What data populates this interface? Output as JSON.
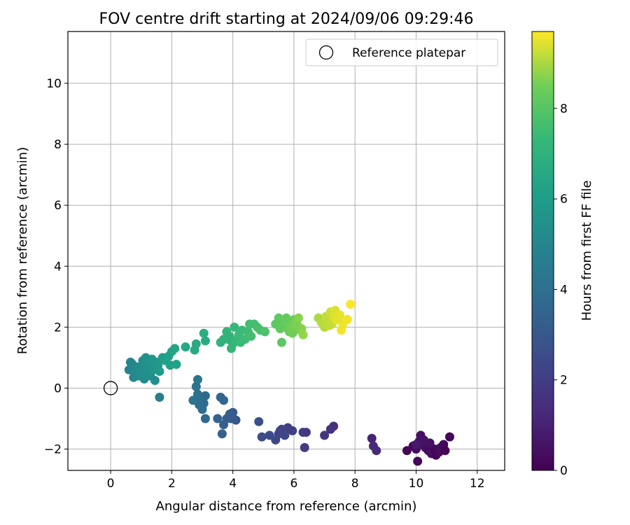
{
  "chart_data": {
    "type": "scatter",
    "title": "FOV centre drift starting at 2024/09/06 09:29:46",
    "xlabel": "Angular distance from reference (arcmin)",
    "ylabel": "Rotation from reference (arcmin)",
    "xlim": [
      -1.4,
      12.9
    ],
    "ylim": [
      -2.7,
      11.7
    ],
    "x_ticks": [
      0,
      2,
      4,
      6,
      8,
      10,
      12
    ],
    "y_ticks": [
      -2,
      0,
      2,
      4,
      6,
      8,
      10
    ],
    "grid": true,
    "legend": {
      "position": "top-right",
      "entries": [
        "Reference platepar"
      ]
    },
    "reference_point": {
      "label": "Reference platepar",
      "x": 0,
      "y": 0,
      "marker": "open-circle"
    },
    "colorbar": {
      "label": "Hours from first FF file",
      "min": 0,
      "max": 9.7,
      "ticks": [
        0,
        2,
        4,
        6,
        8
      ],
      "colormap": "viridis"
    },
    "series": [
      {
        "color_by": "hours",
        "points": [
          {
            "x": 9.7,
            "y": -2.05,
            "h": 0.1
          },
          {
            "x": 9.9,
            "y": -1.9,
            "h": 0.2
          },
          {
            "x": 10.0,
            "y": -2.0,
            "h": 0.3
          },
          {
            "x": 10.05,
            "y": -2.4,
            "h": 0.2
          },
          {
            "x": 10.1,
            "y": -1.75,
            "h": 0.4
          },
          {
            "x": 10.15,
            "y": -1.55,
            "h": 0.5
          },
          {
            "x": 10.2,
            "y": -1.85,
            "h": 0.6
          },
          {
            "x": 10.3,
            "y": -1.95,
            "h": 0.4
          },
          {
            "x": 10.4,
            "y": -2.05,
            "h": 0.3
          },
          {
            "x": 10.5,
            "y": -2.15,
            "h": 0.5
          },
          {
            "x": 10.6,
            "y": -2.0,
            "h": 0.2
          },
          {
            "x": 10.65,
            "y": -2.2,
            "h": 0.1
          },
          {
            "x": 10.75,
            "y": -2.1,
            "h": 0.3
          },
          {
            "x": 10.8,
            "y": -1.95,
            "h": 0.4
          },
          {
            "x": 10.9,
            "y": -1.85,
            "h": 0.2
          },
          {
            "x": 10.95,
            "y": -2.05,
            "h": 0.1
          },
          {
            "x": 11.1,
            "y": -1.6,
            "h": 0.2
          },
          {
            "x": 10.25,
            "y": -1.7,
            "h": 0.6
          },
          {
            "x": 10.45,
            "y": -1.8,
            "h": 0.5
          },
          {
            "x": 10.0,
            "y": -1.85,
            "h": 0.7
          },
          {
            "x": 8.55,
            "y": -1.65,
            "h": 1.1
          },
          {
            "x": 8.6,
            "y": -1.9,
            "h": 1.2
          },
          {
            "x": 8.7,
            "y": -2.05,
            "h": 1.3
          },
          {
            "x": 7.3,
            "y": -1.25,
            "h": 1.5
          },
          {
            "x": 7.2,
            "y": -1.35,
            "h": 1.6
          },
          {
            "x": 7.0,
            "y": -1.55,
            "h": 1.7
          },
          {
            "x": 6.4,
            "y": -1.45,
            "h": 1.8
          },
          {
            "x": 6.3,
            "y": -1.45,
            "h": 1.9
          },
          {
            "x": 6.35,
            "y": -1.95,
            "h": 2.0
          },
          {
            "x": 5.95,
            "y": -1.4,
            "h": 2.1
          },
          {
            "x": 5.8,
            "y": -1.3,
            "h": 2.1
          },
          {
            "x": 5.6,
            "y": -1.35,
            "h": 2.2
          },
          {
            "x": 5.5,
            "y": -1.5,
            "h": 2.3
          },
          {
            "x": 5.4,
            "y": -1.7,
            "h": 2.4
          },
          {
            "x": 5.2,
            "y": -1.55,
            "h": 2.5
          },
          {
            "x": 4.95,
            "y": -1.6,
            "h": 2.6
          },
          {
            "x": 4.85,
            "y": -1.1,
            "h": 2.7
          },
          {
            "x": 5.7,
            "y": -1.55,
            "h": 2.3
          },
          {
            "x": 5.55,
            "y": -1.4,
            "h": 2.2
          },
          {
            "x": 4.1,
            "y": -1.05,
            "h": 3.0
          },
          {
            "x": 4.0,
            "y": -0.8,
            "h": 3.1
          },
          {
            "x": 3.9,
            "y": -0.85,
            "h": 3.2
          },
          {
            "x": 3.8,
            "y": -1.0,
            "h": 3.3
          },
          {
            "x": 3.7,
            "y": -1.2,
            "h": 3.3
          },
          {
            "x": 3.65,
            "y": -1.5,
            "h": 3.4
          },
          {
            "x": 3.6,
            "y": -0.3,
            "h": 3.5
          },
          {
            "x": 3.7,
            "y": -0.4,
            "h": 3.6
          },
          {
            "x": 3.5,
            "y": -1.0,
            "h": 3.5
          },
          {
            "x": 3.95,
            "y": -1.0,
            "h": 3.2
          },
          {
            "x": 3.1,
            "y": -1.0,
            "h": 3.7
          },
          {
            "x": 3.05,
            "y": -0.5,
            "h": 3.8
          },
          {
            "x": 2.95,
            "y": -0.3,
            "h": 3.9
          },
          {
            "x": 2.85,
            "y": -0.2,
            "h": 4.0
          },
          {
            "x": 2.8,
            "y": 0.05,
            "h": 4.1
          },
          {
            "x": 2.85,
            "y": 0.28,
            "h": 4.2
          },
          {
            "x": 2.7,
            "y": -0.4,
            "h": 4.1
          },
          {
            "x": 3.0,
            "y": -0.7,
            "h": 3.9
          },
          {
            "x": 3.1,
            "y": -0.25,
            "h": 3.8
          },
          {
            "x": 2.9,
            "y": -0.55,
            "h": 3.9
          },
          {
            "x": 1.6,
            "y": -0.3,
            "h": 4.6
          },
          {
            "x": 0.6,
            "y": 0.6,
            "h": 5.0
          },
          {
            "x": 0.7,
            "y": 0.8,
            "h": 5.1
          },
          {
            "x": 0.8,
            "y": 0.5,
            "h": 5.2
          },
          {
            "x": 0.9,
            "y": 0.4,
            "h": 5.0
          },
          {
            "x": 1.0,
            "y": 0.65,
            "h": 5.3
          },
          {
            "x": 1.05,
            "y": 0.9,
            "h": 5.4
          },
          {
            "x": 1.1,
            "y": 0.3,
            "h": 5.2
          },
          {
            "x": 1.2,
            "y": 0.55,
            "h": 5.5
          },
          {
            "x": 1.25,
            "y": 0.75,
            "h": 5.6
          },
          {
            "x": 1.3,
            "y": 0.4,
            "h": 5.3
          },
          {
            "x": 1.4,
            "y": 0.6,
            "h": 5.7
          },
          {
            "x": 1.45,
            "y": 0.25,
            "h": 5.4
          },
          {
            "x": 1.5,
            "y": 0.85,
            "h": 5.8
          },
          {
            "x": 1.6,
            "y": 0.55,
            "h": 5.9
          },
          {
            "x": 0.75,
            "y": 0.35,
            "h": 5.1
          },
          {
            "x": 0.85,
            "y": 0.7,
            "h": 5.2
          },
          {
            "x": 0.95,
            "y": 0.55,
            "h": 5.3
          },
          {
            "x": 1.15,
            "y": 1.0,
            "h": 5.6
          },
          {
            "x": 1.35,
            "y": 0.95,
            "h": 5.7
          },
          {
            "x": 0.65,
            "y": 0.85,
            "h": 5.0
          },
          {
            "x": 1.0,
            "y": 0.45,
            "h": 5.4
          },
          {
            "x": 1.2,
            "y": 0.7,
            "h": 5.5
          },
          {
            "x": 1.55,
            "y": 0.75,
            "h": 5.8
          },
          {
            "x": 1.7,
            "y": 1.0,
            "h": 6.0
          },
          {
            "x": 1.8,
            "y": 0.9,
            "h": 6.1
          },
          {
            "x": 1.9,
            "y": 1.05,
            "h": 6.2
          },
          {
            "x": 2.0,
            "y": 1.2,
            "h": 6.3
          },
          {
            "x": 2.1,
            "y": 1.3,
            "h": 6.4
          },
          {
            "x": 2.15,
            "y": 0.78,
            "h": 6.3
          },
          {
            "x": 1.95,
            "y": 0.75,
            "h": 6.2
          },
          {
            "x": 2.45,
            "y": 1.35,
            "h": 6.5
          },
          {
            "x": 2.8,
            "y": 1.45,
            "h": 6.6
          },
          {
            "x": 2.75,
            "y": 1.25,
            "h": 6.6
          },
          {
            "x": 3.05,
            "y": 1.8,
            "h": 6.8
          },
          {
            "x": 3.1,
            "y": 1.55,
            "h": 6.7
          },
          {
            "x": 3.6,
            "y": 1.5,
            "h": 7.0
          },
          {
            "x": 3.7,
            "y": 1.6,
            "h": 7.0
          },
          {
            "x": 3.8,
            "y": 1.85,
            "h": 7.1
          },
          {
            "x": 3.9,
            "y": 1.7,
            "h": 7.1
          },
          {
            "x": 3.95,
            "y": 1.3,
            "h": 7.2
          },
          {
            "x": 4.0,
            "y": 1.45,
            "h": 7.2
          },
          {
            "x": 4.05,
            "y": 2.0,
            "h": 7.3
          },
          {
            "x": 4.1,
            "y": 1.55,
            "h": 7.3
          },
          {
            "x": 4.2,
            "y": 1.75,
            "h": 7.4
          },
          {
            "x": 4.3,
            "y": 1.9,
            "h": 7.4
          },
          {
            "x": 4.4,
            "y": 1.6,
            "h": 7.5
          },
          {
            "x": 4.5,
            "y": 1.85,
            "h": 7.5
          },
          {
            "x": 4.6,
            "y": 1.7,
            "h": 7.6
          },
          {
            "x": 4.7,
            "y": 2.1,
            "h": 7.6
          },
          {
            "x": 4.8,
            "y": 2.0,
            "h": 7.7
          },
          {
            "x": 4.9,
            "y": 1.9,
            "h": 7.7
          },
          {
            "x": 5.05,
            "y": 1.85,
            "h": 7.8
          },
          {
            "x": 4.25,
            "y": 1.5,
            "h": 7.4
          },
          {
            "x": 4.55,
            "y": 2.1,
            "h": 7.6
          },
          {
            "x": 3.85,
            "y": 1.6,
            "h": 7.1
          },
          {
            "x": 5.4,
            "y": 2.1,
            "h": 8.1
          },
          {
            "x": 5.5,
            "y": 2.3,
            "h": 8.2
          },
          {
            "x": 5.55,
            "y": 1.95,
            "h": 8.2
          },
          {
            "x": 5.6,
            "y": 1.5,
            "h": 8.1
          },
          {
            "x": 5.65,
            "y": 2.2,
            "h": 8.3
          },
          {
            "x": 5.7,
            "y": 2.0,
            "h": 8.3
          },
          {
            "x": 5.8,
            "y": 2.15,
            "h": 8.4
          },
          {
            "x": 5.85,
            "y": 1.85,
            "h": 8.4
          },
          {
            "x": 5.9,
            "y": 2.0,
            "h": 8.5
          },
          {
            "x": 6.0,
            "y": 2.25,
            "h": 8.5
          },
          {
            "x": 6.05,
            "y": 1.9,
            "h": 8.6
          },
          {
            "x": 6.1,
            "y": 2.1,
            "h": 8.6
          },
          {
            "x": 6.15,
            "y": 2.3,
            "h": 8.7
          },
          {
            "x": 6.25,
            "y": 1.95,
            "h": 8.7
          },
          {
            "x": 6.3,
            "y": 1.75,
            "h": 8.8
          },
          {
            "x": 5.75,
            "y": 2.3,
            "h": 8.3
          },
          {
            "x": 5.95,
            "y": 1.8,
            "h": 8.5
          },
          {
            "x": 6.05,
            "y": 2.05,
            "h": 8.6
          },
          {
            "x": 6.8,
            "y": 2.3,
            "h": 9.0
          },
          {
            "x": 6.9,
            "y": 2.15,
            "h": 9.1
          },
          {
            "x": 7.0,
            "y": 2.0,
            "h": 9.1
          },
          {
            "x": 7.05,
            "y": 2.35,
            "h": 9.2
          },
          {
            "x": 7.1,
            "y": 2.2,
            "h": 9.2
          },
          {
            "x": 7.2,
            "y": 2.5,
            "h": 9.3
          },
          {
            "x": 7.25,
            "y": 2.1,
            "h": 9.3
          },
          {
            "x": 7.3,
            "y": 2.35,
            "h": 9.4
          },
          {
            "x": 7.35,
            "y": 2.55,
            "h": 9.4
          },
          {
            "x": 7.4,
            "y": 2.25,
            "h": 9.5
          },
          {
            "x": 7.5,
            "y": 2.4,
            "h": 9.5
          },
          {
            "x": 7.55,
            "y": 1.9,
            "h": 9.6
          },
          {
            "x": 7.6,
            "y": 2.1,
            "h": 9.6
          },
          {
            "x": 7.75,
            "y": 2.25,
            "h": 9.6
          },
          {
            "x": 7.85,
            "y": 2.75,
            "h": 9.7
          },
          {
            "x": 7.15,
            "y": 2.05,
            "h": 9.2
          },
          {
            "x": 7.45,
            "y": 2.3,
            "h": 9.5
          }
        ]
      }
    ]
  }
}
